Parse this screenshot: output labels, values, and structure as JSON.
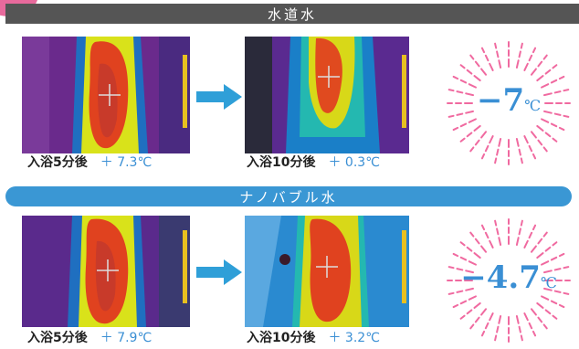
{
  "corner_badge": "紙",
  "sections": [
    {
      "title": "水道水",
      "before": {
        "label": "入浴5分後",
        "value": "＋ 7.3℃"
      },
      "after": {
        "label": "入浴10分後",
        "value": "＋ 0.3℃"
      },
      "result": {
        "number": "−7",
        "unit": "℃"
      }
    },
    {
      "title": "ナノバブル水",
      "before": {
        "label": "入浴5分後",
        "value": "＋ 7.9℃"
      },
      "after": {
        "label": "入浴10分後",
        "value": "＋ 3.2℃"
      },
      "result": {
        "number": "−4.7",
        "unit": "℃"
      }
    }
  ],
  "colors": {
    "header_gray": "#555555",
    "header_blue": "#3a97d4",
    "accent_blue": "#3a8fd4",
    "burst_pink": "#f06aa0",
    "badge_pink": "#e86a9c"
  },
  "icons": {
    "arrow": "arrow-right-icon",
    "burst": "starburst-icon"
  }
}
